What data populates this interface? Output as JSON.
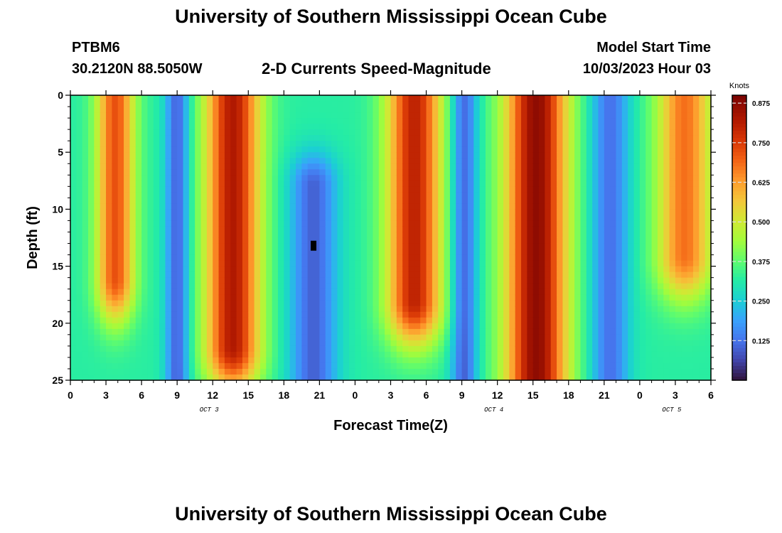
{
  "header": {
    "title": "University of Southern Mississippi Ocean Cube",
    "station_id": "PTBM6",
    "station_coords": "30.2120N  88.5050W",
    "plot_title": "2-D Currents Speed-Magnitude",
    "model_start_label": "Model Start Time",
    "model_start_value": "10/03/2023 Hour 03"
  },
  "footer": {
    "title": "University of Southern Mississippi Ocean Cube"
  },
  "chart_data": {
    "type": "heatmap",
    "title": "2-D Currents Speed-Magnitude",
    "xlabel": "Forecast Time(Z)",
    "ylabel": "Depth (ft)",
    "x_unit": "hours since 00Z Oct 3",
    "xlim": [
      0,
      54
    ],
    "ylim": [
      0,
      25
    ],
    "y_inverted": true,
    "x_tick_values": [
      0,
      3,
      6,
      9,
      12,
      15,
      18,
      21,
      24,
      27,
      30,
      33,
      36,
      39,
      42,
      45,
      48,
      51,
      54
    ],
    "x_tick_labels": [
      "0",
      "3",
      "6",
      "9",
      "12",
      "15",
      "18",
      "21",
      "0",
      "3",
      "6",
      "9",
      "12",
      "15",
      "18",
      "21",
      "0",
      "3",
      "6"
    ],
    "y_tick_values": [
      0,
      5,
      10,
      15,
      20,
      25
    ],
    "y_tick_labels": [
      "0",
      "5",
      "10",
      "15",
      "20",
      "25"
    ],
    "date_labels": [
      {
        "text": "OCT 3",
        "x": 11.7
      },
      {
        "text": "OCT 4",
        "x": 35.7
      },
      {
        "text": "OCT 5",
        "x": 50.7
      }
    ],
    "colorbar": {
      "label": "Knots",
      "vmin": 0,
      "vmax": 0.9,
      "ticks": [
        0.125,
        0.25,
        0.375,
        0.5,
        0.625,
        0.75,
        0.875
      ],
      "tick_labels": [
        "0.125",
        "0.250",
        "0.375",
        "0.500",
        "0.625",
        "0.750",
        "0.875"
      ]
    },
    "min_marker": {
      "x": 20.5,
      "depth": 13.2,
      "value": 0.0
    },
    "features": [
      {
        "kind": "max",
        "x": 3.8,
        "depth_top": 0,
        "depth_bottom": 16,
        "peak": 0.72,
        "width": 1.6
      },
      {
        "kind": "min",
        "x": 9.0,
        "depth_top": 0,
        "depth_bottom": 25,
        "peak": 0.1,
        "width": 1.0
      },
      {
        "kind": "max",
        "x": 13.7,
        "depth_top": 0,
        "depth_bottom": 22,
        "peak": 0.82,
        "width": 2.3
      },
      {
        "kind": "min",
        "x": 20.5,
        "depth_top": 8,
        "depth_bottom": 25,
        "peak": 0.1,
        "width": 2.0
      },
      {
        "kind": "max",
        "x": 29.0,
        "depth_top": 0,
        "depth_bottom": 18,
        "peak": 0.8,
        "width": 2.3
      },
      {
        "kind": "min",
        "x": 33.2,
        "depth_top": 0,
        "depth_bottom": 25,
        "peak": 0.1,
        "width": 1.1
      },
      {
        "kind": "max",
        "x": 39.3,
        "depth_top": 0,
        "depth_bottom": 25,
        "peak": 0.87,
        "width": 2.6
      },
      {
        "kind": "min",
        "x": 45.5,
        "depth_top": 0,
        "depth_bottom": 25,
        "peak": 0.12,
        "width": 1.6
      },
      {
        "kind": "max",
        "x": 51.8,
        "depth_top": 0,
        "depth_bottom": 14,
        "peak": 0.68,
        "width": 2.3
      }
    ]
  }
}
